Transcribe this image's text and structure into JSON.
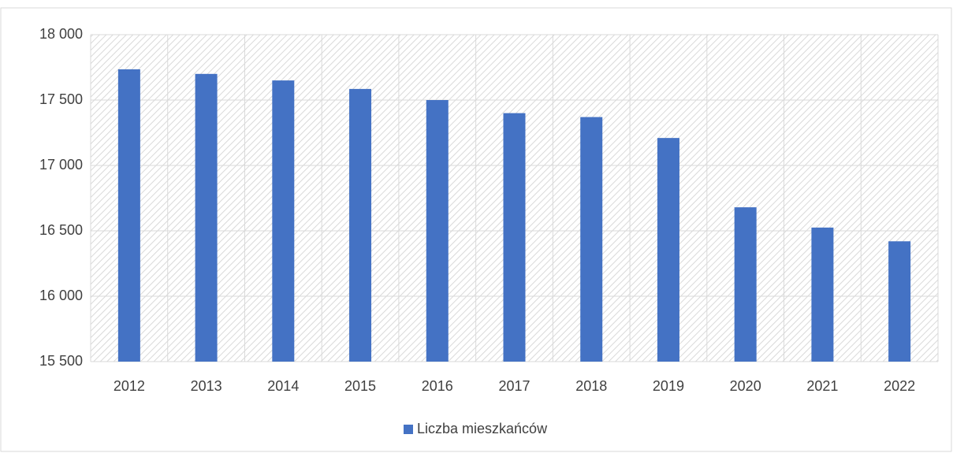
{
  "chart_data": {
    "type": "bar",
    "categories": [
      "2012",
      "2013",
      "2014",
      "2015",
      "2016",
      "2017",
      "2018",
      "2019",
      "2020",
      "2021",
      "2022"
    ],
    "series": [
      {
        "name": "Liczba mieszkańców",
        "color": "#4472c4",
        "values": [
          17735,
          17700,
          17650,
          17585,
          17500,
          17400,
          17370,
          17210,
          16680,
          16525,
          16420
        ]
      }
    ],
    "ylim": [
      15500,
      18000
    ],
    "yticks": [
      {
        "value": 15500,
        "label": "15 500"
      },
      {
        "value": 16000,
        "label": "16 000"
      },
      {
        "value": 16500,
        "label": "16 500"
      },
      {
        "value": 17000,
        "label": "17 000"
      },
      {
        "value": 17500,
        "label": "17 500"
      },
      {
        "value": 18000,
        "label": "18 000"
      }
    ],
    "grid": true,
    "legend": "bottom"
  }
}
